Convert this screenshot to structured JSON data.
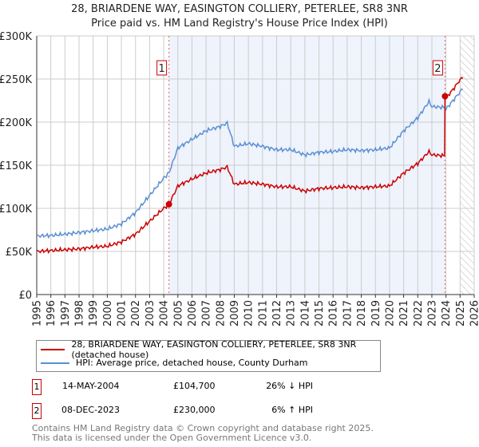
{
  "chart_data": {
    "type": "line",
    "title": "28, BRIARDENE WAY, EASINGTON COLLIERY, PETERLEE, SR8 3NR",
    "subtitle": "Price paid vs. HM Land Registry's House Price Index (HPI)",
    "xlim": [
      1995,
      2026
    ],
    "ylim": [
      0,
      300000
    ],
    "y_ticks": [
      "£0",
      "£50K",
      "£100K",
      "£150K",
      "£200K",
      "£250K",
      "£300K"
    ],
    "y_tick_values": [
      0,
      50000,
      100000,
      150000,
      200000,
      250000,
      300000
    ],
    "x_ticks": [
      "1995",
      "1996",
      "1997",
      "1998",
      "1999",
      "2000",
      "2001",
      "2002",
      "2003",
      "2004",
      "2005",
      "2006",
      "2007",
      "2008",
      "2009",
      "2010",
      "2011",
      "2012",
      "2013",
      "2014",
      "2015",
      "2016",
      "2017",
      "2018",
      "2019",
      "2020",
      "2021",
      "2022",
      "2023",
      "2024",
      "2025",
      "2026"
    ],
    "grid": true,
    "series": [
      {
        "name": "28, BRIARDENE WAY, EASINGTON COLLIERY, PETERLEE, SR8 3NR (detached house)",
        "color": "#cc0000",
        "x": [
          1995,
          1996,
          1997,
          1998,
          1999,
          2000,
          2001,
          2002,
          2003,
          2004,
          2004.37,
          2005,
          2006,
          2007,
          2008,
          2008.5,
          2009,
          2010,
          2011,
          2012,
          2013,
          2014,
          2015,
          2016,
          2017,
          2018,
          2019,
          2020,
          2021,
          2022,
          2022.8,
          2023,
          2023.9,
          2023.93,
          2024,
          2024.5,
          2025,
          2025.2
        ],
        "y": [
          50000,
          51000,
          52000,
          53000,
          55000,
          56000,
          61000,
          70000,
          85000,
          100000,
          104700,
          126000,
          134000,
          141000,
          145000,
          148000,
          128000,
          130000,
          128000,
          125000,
          125000,
          120000,
          123000,
          124000,
          125000,
          124000,
          125000,
          126000,
          141000,
          152000,
          166000,
          162000,
          161000,
          230000,
          228000,
          238000,
          249000,
          251000
        ]
      },
      {
        "name": "HPI: Average price, detached house, County Durham",
        "color": "#5b8fd4",
        "x": [
          1995,
          1996,
          1997,
          1998,
          1999,
          2000,
          2001,
          2002,
          2003,
          2004,
          2004.37,
          2005,
          2006,
          2007,
          2008,
          2008.5,
          2009,
          2010,
          2011,
          2012,
          2013,
          2014,
          2015,
          2016,
          2017,
          2018,
          2019,
          2020,
          2021,
          2022,
          2022.8,
          2023,
          2023.9,
          2023.93,
          2024,
          2024.5,
          2025,
          2025.2
        ],
        "y": [
          68000,
          68500,
          70000,
          72000,
          74000,
          76000,
          82000,
          95000,
          115000,
          135000,
          141000,
          170000,
          180000,
          190000,
          195000,
          199000,
          172000,
          175000,
          172000,
          168000,
          168000,
          162000,
          165000,
          166000,
          168000,
          167000,
          168000,
          170000,
          190000,
          205000,
          224000,
          218000,
          217000,
          217000,
          215000,
          225000,
          235000,
          238000
        ]
      }
    ],
    "sales": [
      {
        "label": "1",
        "date": "14-MAY-2004",
        "x": 2004.37,
        "price": "£104,700",
        "value": 104700,
        "hpi": "26% ↓ HPI"
      },
      {
        "label": "2",
        "date": "08-DEC-2023",
        "x": 2023.93,
        "price": "£230,000",
        "value": 230000,
        "hpi": "6% ↑ HPI"
      }
    ],
    "shaded_range": [
      2004.37,
      2023.93
    ],
    "forecast_from": 2025.0
  },
  "footer": {
    "line1": "Contains HM Land Registry data © Crown copyright and database right 2025.",
    "line2": "This data is licensed under the Open Government Licence v3.0."
  }
}
